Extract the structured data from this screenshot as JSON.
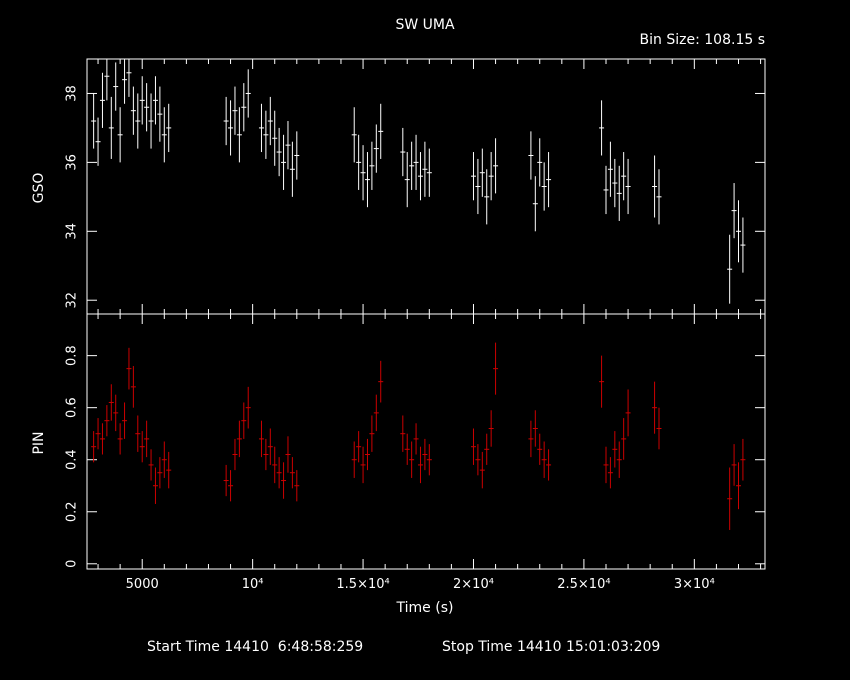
{
  "header": {
    "title": "SW UMA",
    "bin_size": "Bin Size: 108.15 s"
  },
  "footer": {
    "start_time": "Start Time 14410  6:48:58:259",
    "stop_time": "Stop Time 14410 15:01:03:209"
  },
  "colors": {
    "background": "#000000",
    "axes": "#ffffff",
    "gso_series": "#ffffff",
    "pin_series": "#cc0000"
  },
  "chart_data": [
    {
      "type": "scatter",
      "panel": "top",
      "ylabel": "GSO",
      "xlim": [
        2500,
        33200
      ],
      "ylim": [
        31.6,
        39.0
      ],
      "yticks": [
        32,
        34,
        36,
        38
      ],
      "ytick_labels": [
        "32",
        "34",
        "36",
        "38"
      ],
      "grid": false,
      "series": [
        {
          "color": "#ffffff",
          "x": [
            2800,
            3000,
            3200,
            3400,
            3600,
            3800,
            4000,
            4200,
            4400,
            4600,
            4800,
            5000,
            5200,
            5400,
            5600,
            5800,
            6000,
            6200,
            8800,
            9000,
            9200,
            9400,
            9600,
            9800,
            10400,
            10600,
            10800,
            11000,
            11200,
            11400,
            11600,
            11800,
            12000,
            14600,
            14800,
            15000,
            15200,
            15400,
            15600,
            15800,
            16800,
            17000,
            17200,
            17400,
            17600,
            17800,
            18000,
            20000,
            20200,
            20400,
            20600,
            20800,
            21000,
            22600,
            22800,
            23000,
            23200,
            23400,
            25800,
            26000,
            26200,
            26400,
            26600,
            26800,
            27000,
            28200,
            28400,
            31600,
            31800,
            32000,
            32200
          ],
          "y": [
            37.2,
            36.6,
            37.8,
            38.5,
            37.0,
            38.2,
            36.8,
            38.4,
            38.6,
            37.5,
            37.2,
            37.8,
            37.6,
            37.2,
            37.8,
            37.4,
            36.8,
            37.0,
            37.2,
            37.0,
            37.5,
            36.8,
            37.6,
            38.0,
            37.0,
            36.8,
            37.2,
            36.7,
            36.3,
            36.0,
            36.5,
            35.8,
            36.2,
            36.8,
            36.0,
            35.7,
            35.5,
            35.9,
            36.4,
            36.9,
            36.3,
            35.5,
            35.9,
            36.0,
            35.6,
            35.8,
            35.7,
            35.6,
            35.3,
            35.7,
            35.0,
            35.6,
            35.9,
            36.2,
            34.8,
            36.0,
            35.3,
            35.5,
            37.0,
            35.2,
            35.8,
            35.4,
            35.1,
            35.6,
            35.3,
            35.3,
            35.0,
            32.9,
            34.6,
            34.0,
            33.6
          ],
          "yerr": [
            0.8,
            0.7,
            0.8,
            0.7,
            0.9,
            0.7,
            0.8,
            0.7,
            0.7,
            0.7,
            0.8,
            0.7,
            0.7,
            0.8,
            0.7,
            0.8,
            0.8,
            0.7,
            0.7,
            0.8,
            0.7,
            0.8,
            0.7,
            0.7,
            0.7,
            0.7,
            0.7,
            0.8,
            0.7,
            0.8,
            0.7,
            0.8,
            0.7,
            0.8,
            0.8,
            0.8,
            0.8,
            0.7,
            0.7,
            0.8,
            0.7,
            0.8,
            0.7,
            0.8,
            0.7,
            0.8,
            0.7,
            0.7,
            0.8,
            0.7,
            0.8,
            0.7,
            0.8,
            0.7,
            0.8,
            0.7,
            0.7,
            0.8,
            0.8,
            0.7,
            0.8,
            0.7,
            0.8,
            0.7,
            0.8,
            0.9,
            0.8,
            1.0,
            0.8,
            0.9,
            0.8
          ]
        }
      ]
    },
    {
      "type": "scatter",
      "panel": "bottom",
      "xlabel": "Time (s)",
      "ylabel": "PIN",
      "xlim": [
        2500,
        33200
      ],
      "ylim": [
        -0.02,
        0.96
      ],
      "xticks": [
        5000,
        10000,
        15000,
        20000,
        25000,
        30000
      ],
      "xtick_labels": [
        "5000",
        "10⁴",
        "1.5×10⁴",
        "2×10⁴",
        "2.5×10⁴",
        "3×10⁴"
      ],
      "yticks": [
        0,
        0.2,
        0.4,
        0.6,
        0.8
      ],
      "ytick_labels": [
        "0",
        "0.2",
        "0.4",
        "0.6",
        "0.8"
      ],
      "grid": false,
      "series": [
        {
          "color": "#cc0000",
          "x": [
            2800,
            3000,
            3200,
            3400,
            3600,
            3800,
            4000,
            4200,
            4400,
            4600,
            4800,
            5000,
            5200,
            5400,
            5600,
            5800,
            6000,
            6200,
            8800,
            9000,
            9200,
            9400,
            9600,
            9800,
            10400,
            10600,
            10800,
            11000,
            11200,
            11400,
            11600,
            11800,
            12000,
            14600,
            14800,
            15000,
            15200,
            15400,
            15600,
            15800,
            16800,
            17000,
            17200,
            17400,
            17600,
            17800,
            18000,
            20000,
            20200,
            20400,
            20600,
            20800,
            21000,
            22600,
            22800,
            23000,
            23200,
            23400,
            25800,
            26000,
            26200,
            26400,
            26600,
            26800,
            27000,
            28200,
            28400,
            31600,
            31800,
            32000,
            32200
          ],
          "y": [
            0.45,
            0.5,
            0.48,
            0.55,
            0.62,
            0.58,
            0.48,
            0.55,
            0.75,
            0.68,
            0.5,
            0.45,
            0.48,
            0.38,
            0.3,
            0.35,
            0.4,
            0.36,
            0.32,
            0.3,
            0.42,
            0.48,
            0.55,
            0.6,
            0.48,
            0.42,
            0.45,
            0.38,
            0.35,
            0.32,
            0.42,
            0.35,
            0.3,
            0.4,
            0.45,
            0.38,
            0.42,
            0.5,
            0.58,
            0.7,
            0.5,
            0.44,
            0.4,
            0.48,
            0.38,
            0.42,
            0.4,
            0.45,
            0.4,
            0.36,
            0.44,
            0.52,
            0.75,
            0.48,
            0.52,
            0.44,
            0.4,
            0.38,
            0.7,
            0.38,
            0.35,
            0.44,
            0.4,
            0.48,
            0.58,
            0.6,
            0.52,
            0.25,
            0.38,
            0.3,
            0.4
          ],
          "yerr": [
            0.06,
            0.06,
            0.06,
            0.06,
            0.07,
            0.07,
            0.06,
            0.07,
            0.08,
            0.08,
            0.07,
            0.06,
            0.07,
            0.06,
            0.07,
            0.06,
            0.07,
            0.07,
            0.06,
            0.06,
            0.06,
            0.07,
            0.07,
            0.08,
            0.07,
            0.06,
            0.07,
            0.07,
            0.06,
            0.07,
            0.07,
            0.06,
            0.06,
            0.07,
            0.06,
            0.07,
            0.06,
            0.07,
            0.07,
            0.08,
            0.07,
            0.06,
            0.07,
            0.06,
            0.07,
            0.06,
            0.06,
            0.07,
            0.06,
            0.07,
            0.06,
            0.07,
            0.1,
            0.07,
            0.07,
            0.06,
            0.07,
            0.06,
            0.1,
            0.07,
            0.06,
            0.07,
            0.07,
            0.08,
            0.09,
            0.1,
            0.08,
            0.12,
            0.08,
            0.09,
            0.08
          ]
        }
      ]
    }
  ]
}
